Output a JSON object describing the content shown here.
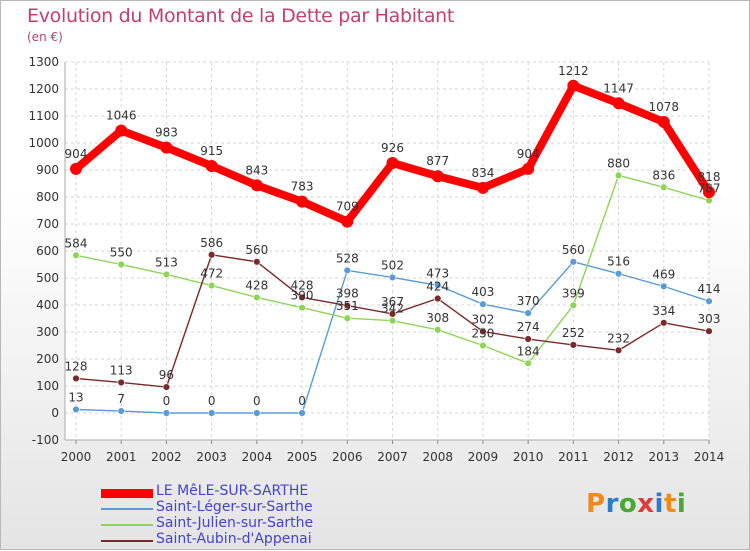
{
  "header": {
    "title": "Evolution du Montant de la Dette par Habitant",
    "unit": "(en €)"
  },
  "brand": {
    "logo_text": "Proxiti",
    "logo_colors": [
      "#f08a1c",
      "#2a7dc8",
      "#4aa832",
      "#e03a3a",
      "#2a7dc8",
      "#f08a1c",
      "#4aa832"
    ]
  },
  "chart_data": {
    "type": "line",
    "title": "Evolution du Montant de la Dette par Habitant",
    "ylabel": "(en €)",
    "xlabel": "",
    "ylim": [
      -100,
      1300
    ],
    "yticks": [
      -100,
      0,
      100,
      200,
      300,
      400,
      500,
      600,
      700,
      800,
      900,
      1000,
      1100,
      1200,
      1300
    ],
    "x": [
      "2000",
      "2001",
      "2002",
      "2003",
      "2004",
      "2005",
      "2006",
      "2007",
      "2008",
      "2009",
      "2010",
      "2011",
      "2012",
      "2013",
      "2014"
    ],
    "grid": true,
    "legend_position": "bottom-left",
    "series": [
      {
        "name": "LE MêLE-SUR-SARTHE",
        "color": "#ff0000",
        "values": [
          904,
          1046,
          983,
          915,
          843,
          783,
          709,
          926,
          877,
          834,
          904,
          1212,
          1147,
          1078,
          818
        ]
      },
      {
        "name": "Saint-Léger-sur-Sarthe",
        "color": "#5b9bd5",
        "values": [
          13,
          7,
          0,
          0,
          0,
          0,
          528,
          502,
          473,
          403,
          370,
          560,
          516,
          469,
          414
        ]
      },
      {
        "name": "Saint-Julien-sur-Sarthe",
        "color": "#8fd45a",
        "values": [
          584,
          550,
          513,
          472,
          428,
          390,
          351,
          342,
          308,
          250,
          184,
          399,
          880,
          836,
          787
        ]
      },
      {
        "name": "Saint-Aubin-d'Appenai",
        "color": "#7a2a2a",
        "values": [
          128,
          113,
          96,
          586,
          560,
          428,
          398,
          367,
          424,
          302,
          274,
          252,
          232,
          334,
          303
        ]
      }
    ]
  }
}
